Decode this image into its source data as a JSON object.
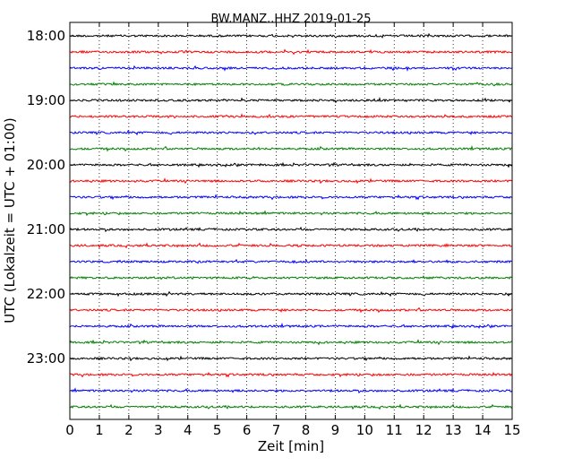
{
  "chart_data": {
    "type": "line",
    "title": "BW.MANZ..HHZ 2019-01-25",
    "xlabel": "Zeit  [min]",
    "ylabel": "UTC (Lokalzeit = UTC + 01:00)",
    "xlim": [
      0,
      15
    ],
    "x_ticks": [
      "0",
      "1",
      "2",
      "3",
      "4",
      "5",
      "6",
      "7",
      "8",
      "9",
      "10",
      "11",
      "12",
      "13",
      "14",
      "15"
    ],
    "y_tick_labels": [
      "18:00",
      "19:00",
      "20:00",
      "21:00",
      "22:00",
      "23:00"
    ],
    "trace_interval_min": 15,
    "trace_start": "18:00",
    "trace_count": 24,
    "trace_colors": [
      "#000000",
      "#ff0000",
      "#0000ff",
      "#008000"
    ],
    "grid": {
      "x": "dotted",
      "y": false
    }
  }
}
